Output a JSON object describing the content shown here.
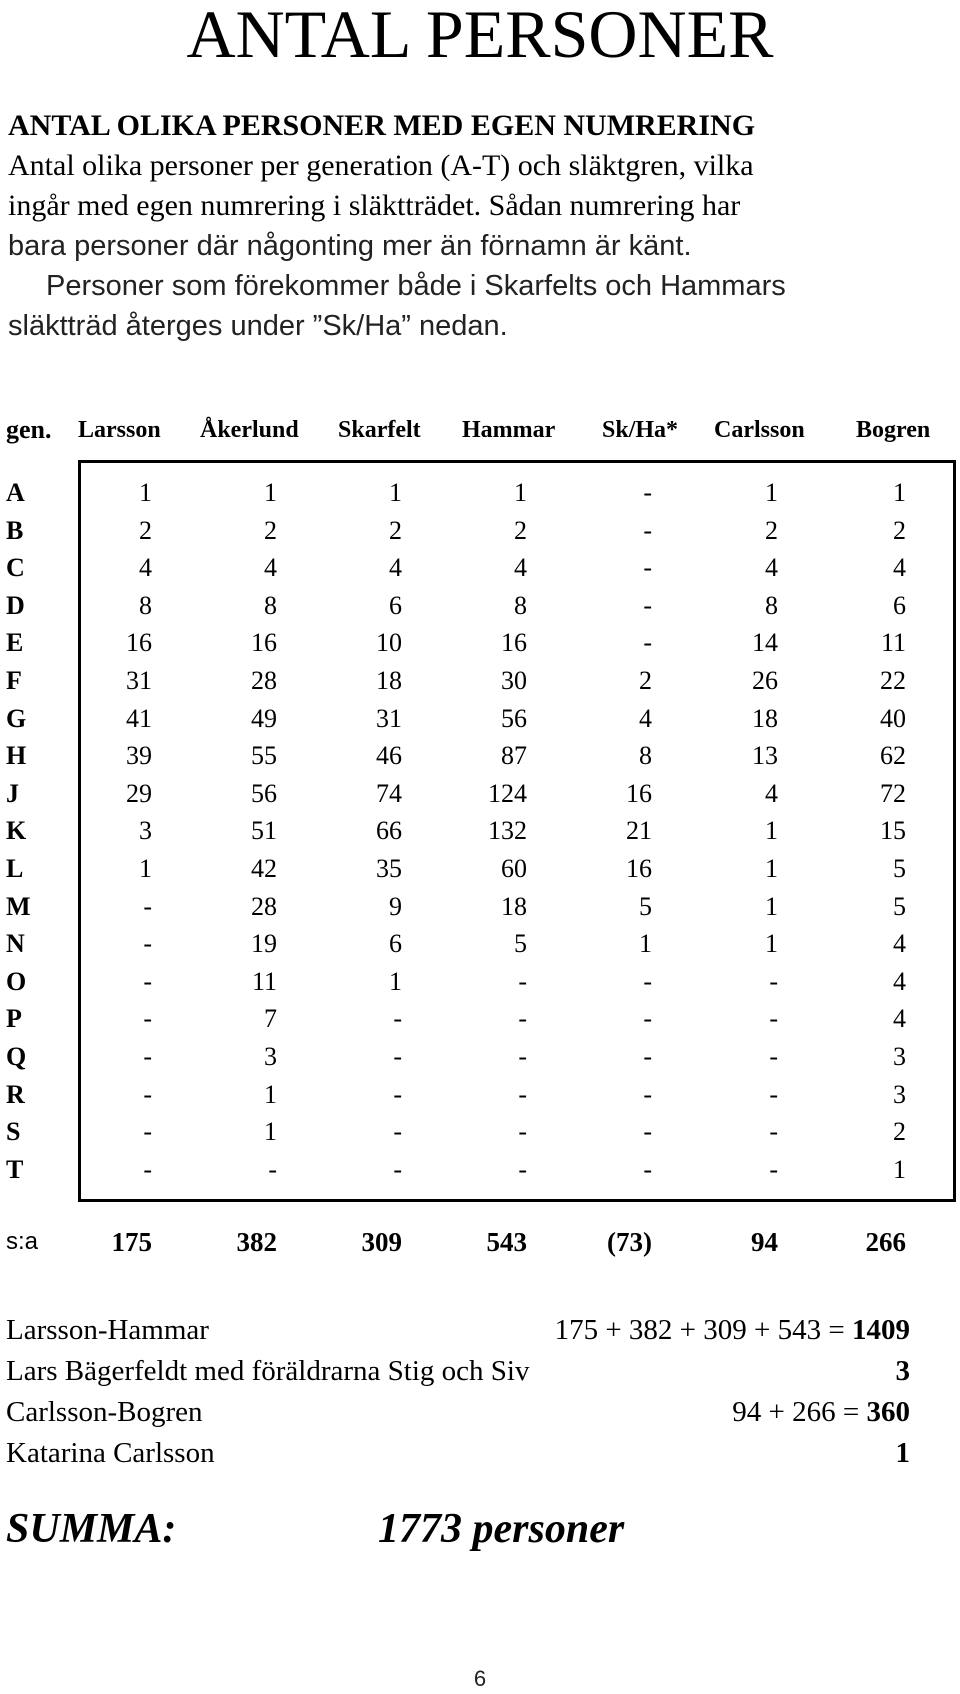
{
  "title": "ANTAL PERSONER",
  "intro": {
    "heading": "ANTAL OLIKA PERSONER MED EGEN NUMRERING",
    "lines": [
      "Antal olika personer per generation (A-T) och släktgren, vilka",
      "ingår med egen numrering i släktträdet. Sådan numrering har",
      "bara personer där någonting mer än förnamn är känt.",
      "Personer som förekommer både i Skarfelts och Hammars",
      "släktträd återges under ”Sk/Ha” nedan."
    ]
  },
  "table": {
    "columns": [
      "gen.",
      "Larsson",
      "Åkerlund",
      "Skarfelt",
      "Hammar",
      "Sk/Ha*",
      "Carlsson",
      "Bogren"
    ],
    "rows": [
      {
        "gen": "A",
        "values": [
          "1",
          "1",
          "1",
          "1",
          "-",
          "1",
          "1"
        ]
      },
      {
        "gen": "B",
        "values": [
          "2",
          "2",
          "2",
          "2",
          "-",
          "2",
          "2"
        ]
      },
      {
        "gen": "C",
        "values": [
          "4",
          "4",
          "4",
          "4",
          "-",
          "4",
          "4"
        ]
      },
      {
        "gen": "D",
        "values": [
          "8",
          "8",
          "6",
          "8",
          "-",
          "8",
          "6"
        ]
      },
      {
        "gen": "E",
        "values": [
          "16",
          "16",
          "10",
          "16",
          "-",
          "14",
          "11"
        ]
      },
      {
        "gen": "F",
        "values": [
          "31",
          "28",
          "18",
          "30",
          "2",
          "26",
          "22"
        ]
      },
      {
        "gen": "G",
        "values": [
          "41",
          "49",
          "31",
          "56",
          "4",
          "18",
          "40"
        ]
      },
      {
        "gen": "H",
        "values": [
          "39",
          "55",
          "46",
          "87",
          "8",
          "13",
          "62"
        ]
      },
      {
        "gen": "J",
        "values": [
          "29",
          "56",
          "74",
          "124",
          "16",
          "4",
          "72"
        ]
      },
      {
        "gen": "K",
        "values": [
          "3",
          "51",
          "66",
          "132",
          "21",
          "1",
          "15"
        ]
      },
      {
        "gen": "L",
        "values": [
          "1",
          "42",
          "35",
          "60",
          "16",
          "1",
          "5"
        ]
      },
      {
        "gen": "M",
        "values": [
          "-",
          "28",
          "9",
          "18",
          "5",
          "1",
          "5"
        ]
      },
      {
        "gen": "N",
        "values": [
          "-",
          "19",
          "6",
          "5",
          "1",
          "1",
          "4"
        ]
      },
      {
        "gen": "O",
        "values": [
          "-",
          "11",
          "1",
          "-",
          "-",
          "-",
          "4"
        ]
      },
      {
        "gen": "P",
        "values": [
          "-",
          "7",
          "-",
          "-",
          "-",
          "-",
          "4"
        ]
      },
      {
        "gen": "Q",
        "values": [
          "-",
          "3",
          "-",
          "-",
          "-",
          "-",
          "3"
        ]
      },
      {
        "gen": "R",
        "values": [
          "-",
          "1",
          "-",
          "-",
          "-",
          "-",
          "3"
        ]
      },
      {
        "gen": "S",
        "values": [
          "-",
          "1",
          "-",
          "-",
          "-",
          "-",
          "2"
        ]
      },
      {
        "gen": "T",
        "values": [
          "-",
          "-",
          "-",
          "-",
          "-",
          "-",
          "1"
        ]
      }
    ],
    "sum_label": "s:a",
    "sums": [
      "175",
      "382",
      "309",
      "543",
      "(73)",
      "94",
      "266"
    ]
  },
  "totals": [
    {
      "label": "Larsson-Hammar",
      "expr": "175 + 382 + 309 + 543 = ",
      "result": "1409"
    },
    {
      "label": "Lars Bägerfeldt  med föräldrarna Stig och Siv",
      "expr": "",
      "result": "3"
    },
    {
      "label": "Carlsson-Bogren",
      "expr": "94 + 266 = ",
      "result": "360"
    },
    {
      "label": "Katarina Carlsson",
      "expr": "",
      "result": "1"
    }
  ],
  "summa": {
    "label": "SUMMA:",
    "value": "1773 personer"
  },
  "page_number": "6"
}
